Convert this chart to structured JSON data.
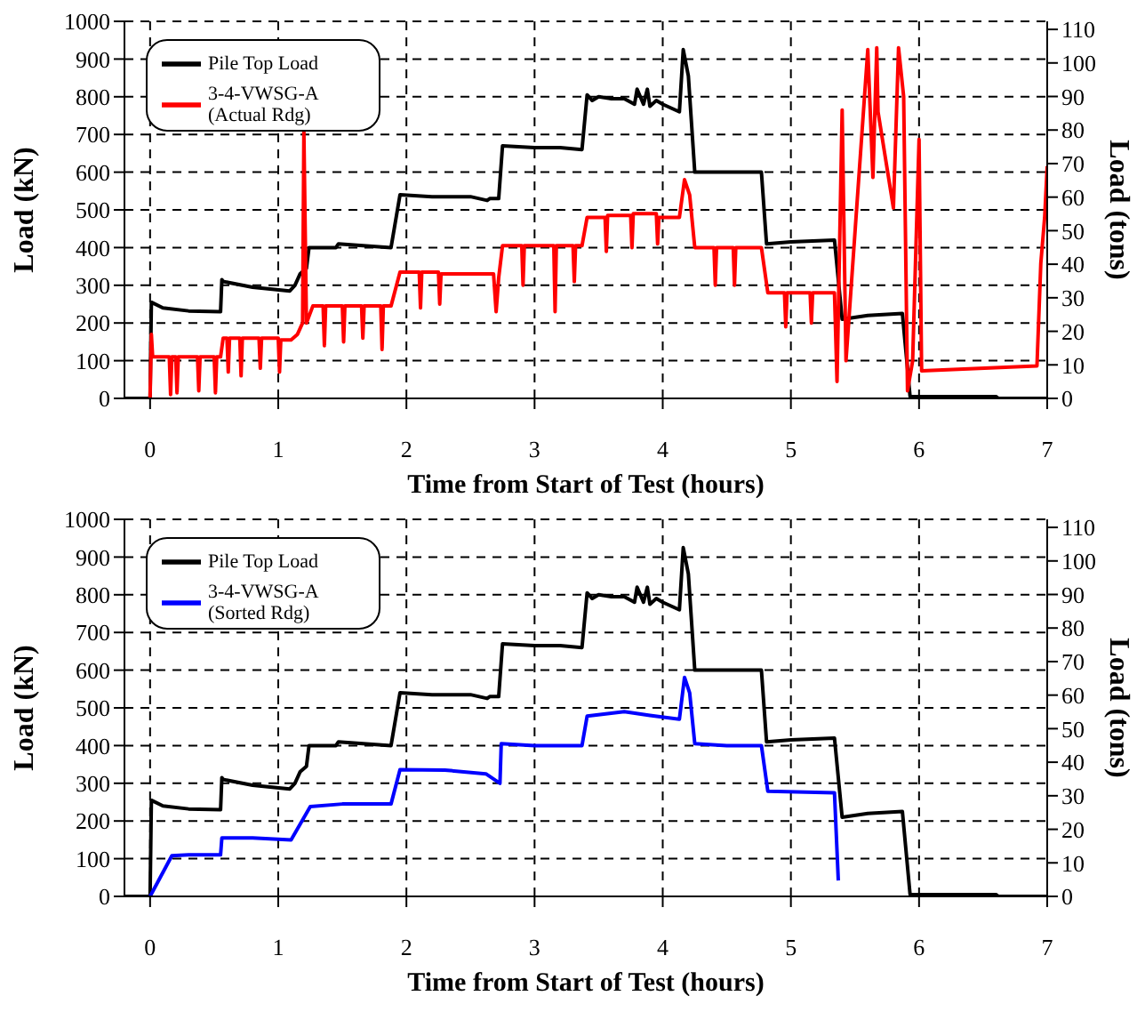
{
  "chart_data": [
    {
      "type": "line",
      "xlabel": "Time from Start of Test (hours)",
      "ylabel": "Load (kN)",
      "y2label": "Load (tons)",
      "xlim": [
        -0.2,
        7
      ],
      "xticks": [
        0,
        1,
        2,
        3,
        4,
        5,
        6,
        7
      ],
      "ylim": [
        0,
        1000
      ],
      "yticks": [
        0,
        100,
        200,
        300,
        400,
        500,
        600,
        700,
        800,
        900,
        1000
      ],
      "y2lim": [
        0,
        112.4
      ],
      "y2ticks": [
        0,
        10,
        20,
        30,
        40,
        50,
        60,
        70,
        80,
        90,
        100,
        110
      ],
      "grid": true,
      "legend": "top left",
      "line_style": "solid",
      "marker": "none",
      "series": [
        {
          "name": "Pile Top Load",
          "color": "#000000",
          "x": [
            -0.2,
            0,
            0.01,
            0.1,
            0.3,
            0.55,
            0.56,
            0.57,
            0.8,
            1.09,
            1.13,
            1.17,
            1.22,
            1.24,
            1.45,
            1.47,
            1.88,
            1.95,
            2.2,
            2.5,
            2.63,
            2.65,
            2.72,
            2.75,
            3.0,
            3.2,
            3.37,
            3.41,
            3.45,
            3.5,
            3.6,
            3.7,
            3.78,
            3.8,
            3.85,
            3.88,
            3.9,
            3.95,
            4.0,
            4.13,
            4.16,
            4.2,
            4.25,
            4.5,
            4.77,
            4.81,
            5.0,
            5.34,
            5.4,
            5.6,
            5.87,
            5.93,
            6.2,
            6.6,
            6.62,
            7
          ],
          "values": [
            0,
            0,
            255,
            240,
            232,
            230,
            315,
            310,
            295,
            285,
            300,
            330,
            345,
            400,
            400,
            410,
            400,
            540,
            535,
            535,
            525,
            530,
            530,
            670,
            665,
            665,
            660,
            805,
            790,
            800,
            795,
            795,
            780,
            820,
            780,
            820,
            775,
            790,
            780,
            760,
            925,
            855,
            600,
            600,
            600,
            410,
            415,
            420,
            210,
            220,
            225,
            5,
            5,
            5,
            0,
            0
          ]
        },
        {
          "name": "3-4-VWSG-A (Actual Rdg)",
          "color": "#ff0000",
          "x": [
            0,
            0.01,
            0.02,
            0.15,
            0.16,
            0.17,
            0.2,
            0.21,
            0.22,
            0.37,
            0.38,
            0.39,
            0.5,
            0.51,
            0.52,
            0.55,
            0.57,
            0.6,
            0.61,
            0.62,
            0.7,
            0.71,
            0.72,
            0.85,
            0.86,
            0.87,
            1.0,
            1.01,
            1.02,
            1.1,
            1.15,
            1.19,
            1.2,
            1.22,
            1.27,
            1.35,
            1.36,
            1.37,
            1.5,
            1.51,
            1.52,
            1.65,
            1.66,
            1.67,
            1.8,
            1.81,
            1.82,
            1.88,
            1.95,
            2.1,
            2.11,
            2.12,
            2.25,
            2.26,
            2.27,
            2.62,
            2.68,
            2.7,
            2.72,
            2.75,
            2.9,
            2.91,
            2.92,
            3.15,
            3.16,
            3.17,
            3.3,
            3.31,
            3.32,
            3.37,
            3.41,
            3.55,
            3.56,
            3.57,
            3.75,
            3.76,
            3.77,
            3.95,
            3.96,
            3.97,
            4.13,
            4.17,
            4.21,
            4.25,
            4.4,
            4.41,
            4.42,
            4.55,
            4.56,
            4.57,
            4.77,
            4.82,
            4.95,
            4.96,
            4.97,
            5.15,
            5.16,
            5.17,
            5.34,
            5.36,
            5.4,
            5.43,
            5.6,
            5.64,
            5.67,
            5.68,
            5.8,
            5.84,
            5.88,
            5.91,
            5.95,
            6.0,
            6.02,
            6.92,
            6.95,
            6.98,
            7.0
          ],
          "values": [
            0,
            170,
            110,
            110,
            10,
            110,
            110,
            15,
            110,
            110,
            20,
            110,
            110,
            15,
            110,
            110,
            160,
            160,
            70,
            160,
            160,
            60,
            160,
            160,
            80,
            160,
            160,
            70,
            155,
            155,
            170,
            200,
            710,
            200,
            245,
            245,
            140,
            245,
            245,
            150,
            245,
            245,
            160,
            245,
            245,
            130,
            245,
            245,
            335,
            335,
            240,
            335,
            335,
            250,
            330,
            330,
            330,
            230,
            320,
            405,
            405,
            300,
            405,
            405,
            230,
            405,
            405,
            310,
            405,
            405,
            480,
            480,
            390,
            485,
            485,
            400,
            490,
            490,
            410,
            480,
            480,
            580,
            540,
            400,
            400,
            300,
            400,
            400,
            300,
            400,
            400,
            280,
            280,
            190,
            280,
            280,
            200,
            280,
            280,
            45,
            765,
            100,
            925,
            586,
            930,
            760,
            505,
            930,
            800,
            20,
            100,
            687,
            73,
            86,
            358,
            480,
            616
          ]
        }
      ]
    },
    {
      "type": "line",
      "xlabel": "Time from Start of Test (hours)",
      "ylabel": "Load (kN)",
      "y2label": "Load (tons)",
      "xlim": [
        -0.2,
        7
      ],
      "xticks": [
        0,
        1,
        2,
        3,
        4,
        5,
        6,
        7
      ],
      "ylim": [
        0,
        1000
      ],
      "yticks": [
        0,
        100,
        200,
        300,
        400,
        500,
        600,
        700,
        800,
        900,
        1000
      ],
      "y2lim": [
        0,
        112.4
      ],
      "y2ticks": [
        0,
        10,
        20,
        30,
        40,
        50,
        60,
        70,
        80,
        90,
        100,
        110
      ],
      "grid": true,
      "legend": "top left",
      "line_style": "solid",
      "marker": "none",
      "series": [
        {
          "name": "Pile Top Load",
          "color": "#000000",
          "x": [
            -0.2,
            0,
            0.01,
            0.1,
            0.3,
            0.55,
            0.56,
            0.57,
            0.8,
            1.09,
            1.13,
            1.17,
            1.22,
            1.24,
            1.45,
            1.47,
            1.88,
            1.95,
            2.2,
            2.5,
            2.63,
            2.65,
            2.72,
            2.75,
            3.0,
            3.2,
            3.37,
            3.41,
            3.45,
            3.5,
            3.6,
            3.7,
            3.78,
            3.8,
            3.85,
            3.88,
            3.9,
            3.95,
            4.0,
            4.13,
            4.16,
            4.2,
            4.25,
            4.5,
            4.77,
            4.81,
            5.0,
            5.34,
            5.4,
            5.6,
            5.87,
            5.93,
            6.2,
            6.6,
            6.62,
            7
          ],
          "values": [
            0,
            0,
            255,
            240,
            232,
            230,
            315,
            310,
            295,
            285,
            300,
            330,
            345,
            400,
            400,
            410,
            400,
            540,
            535,
            535,
            525,
            530,
            530,
            670,
            665,
            665,
            660,
            805,
            790,
            800,
            795,
            795,
            780,
            820,
            780,
            820,
            775,
            790,
            780,
            760,
            925,
            855,
            600,
            600,
            600,
            410,
            415,
            420,
            210,
            220,
            225,
            5,
            5,
            5,
            0,
            0
          ]
        },
        {
          "name": "3-4-VWSG-A (Sorted Rdg)",
          "color": "#0000ff",
          "x": [
            0,
            0.17,
            0.3,
            0.55,
            0.56,
            0.8,
            1.1,
            1.25,
            1.5,
            1.88,
            1.95,
            2.3,
            2.62,
            2.73,
            2.74,
            3.0,
            3.37,
            3.41,
            3.7,
            3.9,
            4.13,
            4.17,
            4.21,
            4.25,
            4.5,
            4.77,
            4.82,
            5.34,
            5.37
          ],
          "values": [
            0,
            108,
            110,
            110,
            155,
            155,
            150,
            238,
            245,
            245,
            336,
            335,
            325,
            300,
            405,
            400,
            400,
            478,
            490,
            480,
            470,
            581,
            540,
            405,
            400,
            400,
            279,
            275,
            42
          ]
        }
      ]
    }
  ]
}
